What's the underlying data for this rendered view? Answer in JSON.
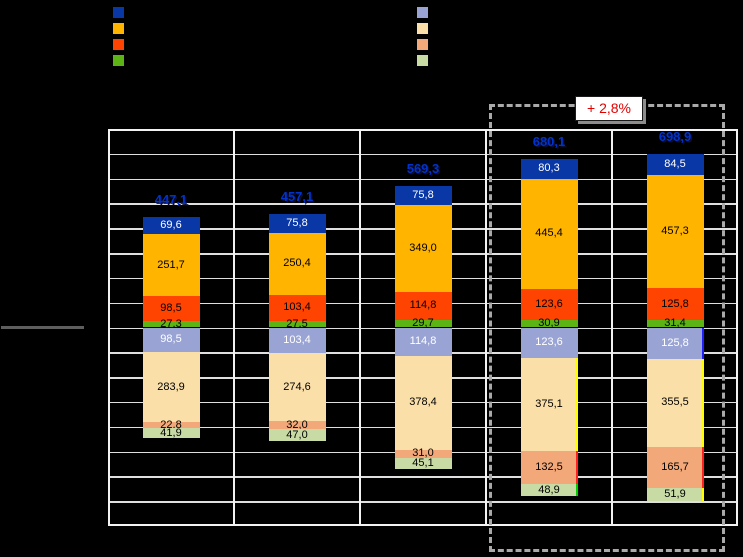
{
  "chart_data": {
    "type": "bar",
    "variant": "diverging-stacked-columns",
    "columns_count": 5,
    "totals": [
      "447,1",
      "457,1",
      "569,3",
      "680,1",
      "698,9"
    ],
    "totals_color": "#0033CC",
    "series_above": [
      {
        "name": "dark-blue",
        "color": "#0A37A6",
        "label_color": "#FFFFFF",
        "values": [
          "69,6",
          "75,8",
          "75,8",
          "80,3",
          "84,5"
        ]
      },
      {
        "name": "amber",
        "color": "#FFB400",
        "label_color": "#000000",
        "values": [
          "251,7",
          "250,4",
          "349,0",
          "445,4",
          "457,3"
        ]
      },
      {
        "name": "orange-red",
        "color": "#FF4300",
        "label_color": "#000000",
        "values": [
          "98,5",
          "103,4",
          "114,8",
          "123,6",
          "125,8"
        ]
      },
      {
        "name": "green",
        "color": "#5CB414",
        "label_color": "#000000",
        "values": [
          "27,3",
          "27,5",
          "29,7",
          "30,9",
          "31,4"
        ]
      }
    ],
    "series_below": [
      {
        "name": "periwinkle",
        "color": "#9AA4D4",
        "label_color": "#FFFFFF",
        "values": [
          "98,5",
          "103,4",
          "114,8",
          "123,6",
          "125,8"
        ]
      },
      {
        "name": "cream",
        "color": "#FBDFA9",
        "label_color": "#000000",
        "values": [
          "283,9",
          "274,6",
          "378,4",
          "375,1",
          "355,5"
        ]
      },
      {
        "name": "salmon",
        "color": "#F2A878",
        "label_color": "#000000",
        "values": [
          "22,8",
          "32,0",
          "31,0",
          "132,5",
          "165,7"
        ]
      },
      {
        "name": "light-green",
        "color": "#C8DBA4",
        "label_color": "#000000",
        "values": [
          "41,9",
          "47,0",
          "45,1",
          "48,9",
          "51,9"
        ]
      }
    ],
    "edge_accents": [
      {
        "column": 3,
        "segment": "cream",
        "color": "#FFFF00"
      },
      {
        "column": 3,
        "segment": "salmon",
        "color": "#FF2020"
      },
      {
        "column": 3,
        "segment": "light-green",
        "color": "#00CC00"
      },
      {
        "column": 4,
        "segment": "periwinkle",
        "color": "#2020FF"
      },
      {
        "column": 4,
        "segment": "cream",
        "color": "#FFFF00"
      },
      {
        "column": 4,
        "segment": "salmon",
        "color": "#FF2020"
      },
      {
        "column": 4,
        "segment": "light-green",
        "color": "#FFFF00"
      }
    ],
    "grid": {
      "rows": 16,
      "pivot_row": 8,
      "units_per_gridline": 100,
      "ylim": [
        -800,
        800
      ],
      "line_color": "#DFDFDF",
      "border_color": "#F2F2F2"
    },
    "highlighted_columns": [
      3,
      4
    ]
  },
  "annotation": {
    "label": "+ 2,8%",
    "text_color": "#E00000"
  }
}
